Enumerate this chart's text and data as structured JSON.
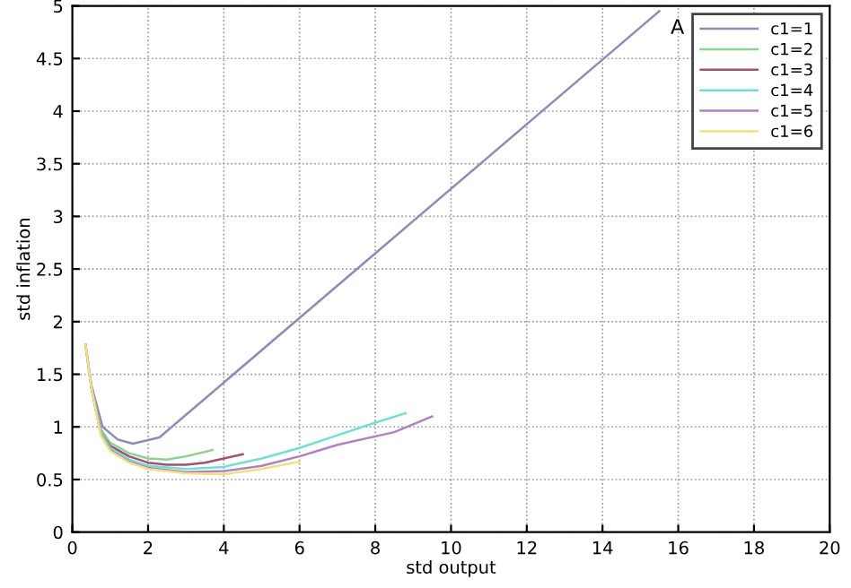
{
  "chart_data": {
    "type": "line",
    "xlabel": "std output",
    "ylabel": "std inflation",
    "xlim": [
      0,
      20
    ],
    "ylim": [
      0,
      5
    ],
    "xticks": [
      0,
      2,
      4,
      6,
      8,
      10,
      12,
      14,
      16,
      18,
      20
    ],
    "yticks": [
      0,
      0.5,
      1,
      1.5,
      2,
      2.5,
      3,
      3.5,
      4,
      4.5,
      5
    ],
    "grid": true,
    "legend": "top right",
    "marker": "none",
    "line_style": "solid",
    "annotations": [
      {
        "text": "A",
        "x": 15.6,
        "y": 4.95
      }
    ],
    "series": [
      {
        "name": "c1=1",
        "color": "#8c8cb4",
        "x": [
          0.35,
          0.5,
          0.8,
          1.2,
          1.6,
          2.3,
          15.5
        ],
        "values": [
          1.78,
          1.4,
          1.0,
          0.88,
          0.84,
          0.9,
          4.95
        ]
      },
      {
        "name": "c1=2",
        "color": "#90d090",
        "x": [
          0.35,
          0.5,
          0.75,
          1.0,
          1.5,
          2.0,
          2.5,
          3.0,
          3.7
        ],
        "values": [
          1.78,
          1.38,
          0.98,
          0.85,
          0.75,
          0.7,
          0.69,
          0.72,
          0.78
        ]
      },
      {
        "name": "c1=3",
        "color": "#a05070",
        "x": [
          0.5,
          0.75,
          1.0,
          1.5,
          2.0,
          2.5,
          3.0,
          3.5,
          4.0,
          4.5
        ],
        "values": [
          1.38,
          0.95,
          0.82,
          0.72,
          0.66,
          0.64,
          0.64,
          0.66,
          0.7,
          0.74
        ]
      },
      {
        "name": "c1=4",
        "color": "#70e0d0",
        "x": [
          0.5,
          0.75,
          1.0,
          1.5,
          2.0,
          3.0,
          4.0,
          5.0,
          6.0,
          7.0,
          8.0,
          8.8
        ],
        "values": [
          1.38,
          0.95,
          0.8,
          0.69,
          0.63,
          0.6,
          0.62,
          0.7,
          0.8,
          0.92,
          1.04,
          1.13
        ]
      },
      {
        "name": "c1=5",
        "color": "#b080c0",
        "x": [
          0.35,
          0.5,
          0.75,
          1.0,
          1.5,
          2.0,
          3.0,
          4.0,
          5.0,
          6.0,
          7.0,
          8.5,
          9.5
        ],
        "values": [
          1.78,
          1.38,
          0.93,
          0.78,
          0.67,
          0.61,
          0.57,
          0.58,
          0.63,
          0.72,
          0.83,
          0.95,
          1.1
        ]
      },
      {
        "name": "c1=6",
        "color": "#f0e080",
        "x": [
          0.35,
          0.5,
          0.75,
          1.0,
          1.5,
          2.0,
          3.0,
          4.0,
          5.0,
          6.0
        ],
        "values": [
          1.78,
          1.38,
          0.92,
          0.77,
          0.66,
          0.6,
          0.56,
          0.55,
          0.6,
          0.67
        ]
      }
    ]
  }
}
